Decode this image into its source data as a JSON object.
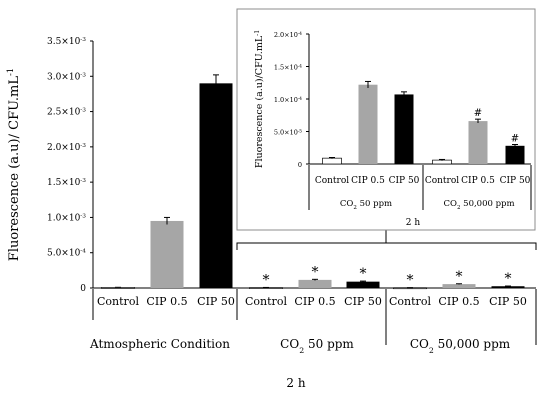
{
  "chart_data": [
    {
      "type": "bar",
      "ylabel": "Fluorescence (a.u)/ CFU.mL",
      "ylabel_sup": "-1",
      "ylim": [
        0,
        0.0035
      ],
      "yticks": [
        {
          "v": 0,
          "label": "0"
        },
        {
          "v": 0.0005,
          "label": "5.0×10",
          "sup": "-4"
        },
        {
          "v": 0.001,
          "label": "1.0×10",
          "sup": "-3"
        },
        {
          "v": 0.0015,
          "label": "1.5×10",
          "sup": "-3"
        },
        {
          "v": 0.002,
          "label": "2.0×10",
          "sup": "-3"
        },
        {
          "v": 0.0025,
          "label": "2.5×10",
          "sup": "-3"
        },
        {
          "v": 0.003,
          "label": "3.0×10",
          "sup": "-3"
        },
        {
          "v": 0.0035,
          "label": "3.5×10",
          "sup": "-3"
        }
      ],
      "categories": [
        "Control",
        "CIP 0.5",
        "CIP 50",
        "Control",
        "CIP 0.5",
        "CIP 50",
        "Control",
        "CIP 0.5",
        "CIP 50"
      ],
      "groups": [
        {
          "label": "Atmospheric Condition",
          "sub": ""
        },
        {
          "label": "CO",
          "sub": "2",
          "tail": " 50 ppm"
        },
        {
          "label": "CO",
          "sub": "2",
          "tail": " 50,000 ppm"
        }
      ],
      "xlabel": "2 h",
      "values": [
        8e-06,
        0.00095,
        0.0029,
        6e-06,
        0.000115,
        9e-05,
        4e-06,
        5.5e-05,
        2.5e-05
      ],
      "errors": [
        2e-06,
        5e-05,
        0.00012,
        2e-06,
        8e-06,
        8e-06,
        1e-06,
        5e-06,
        3e-06
      ],
      "colors": [
        "#ffffff",
        "#a6a6a6",
        "#000000",
        "#ffffff",
        "#a6a6a6",
        "#000000",
        "#ffffff",
        "#a6a6a6",
        "#000000"
      ],
      "markers": [
        "",
        "",
        "",
        "*",
        "*",
        "*",
        "*",
        "*",
        "*"
      ]
    },
    {
      "type": "bar",
      "ylabel": "Fluorescence (a.u)/CFU.mL",
      "ylabel_sup": "-1",
      "ylim": [
        0,
        0.0002
      ],
      "yticks": [
        {
          "v": 0,
          "label": "0"
        },
        {
          "v": 5e-05,
          "label": "5.0×10",
          "sup": "-5"
        },
        {
          "v": 0.0001,
          "label": "1.0×10",
          "sup": "-4"
        },
        {
          "v": 0.00015,
          "label": "1.5×10",
          "sup": "-4"
        },
        {
          "v": 0.0002,
          "label": "2.0×10",
          "sup": "-4"
        }
      ],
      "categories": [
        "Control",
        "CIP 0.5",
        "CIP 50",
        "Control",
        "CIP 0.5",
        "CIP 50"
      ],
      "groups": [
        {
          "label": "CO",
          "sub": "2",
          "tail": " 50 ppm"
        },
        {
          "label": "CO",
          "sub": "2",
          "tail": " 50,000 ppm"
        }
      ],
      "xlabel": "2 h",
      "values": [
        9e-06,
        0.000122,
        0.000107,
        6e-06,
        6.6e-05,
        2.8e-05
      ],
      "errors": [
        1e-06,
        5e-06,
        4e-06,
        1e-06,
        3e-06,
        2e-06
      ],
      "colors": [
        "#ffffff",
        "#a6a6a6",
        "#000000",
        "#ffffff",
        "#a6a6a6",
        "#000000"
      ],
      "markers": [
        "",
        "",
        "",
        "",
        "#",
        "#"
      ]
    }
  ]
}
